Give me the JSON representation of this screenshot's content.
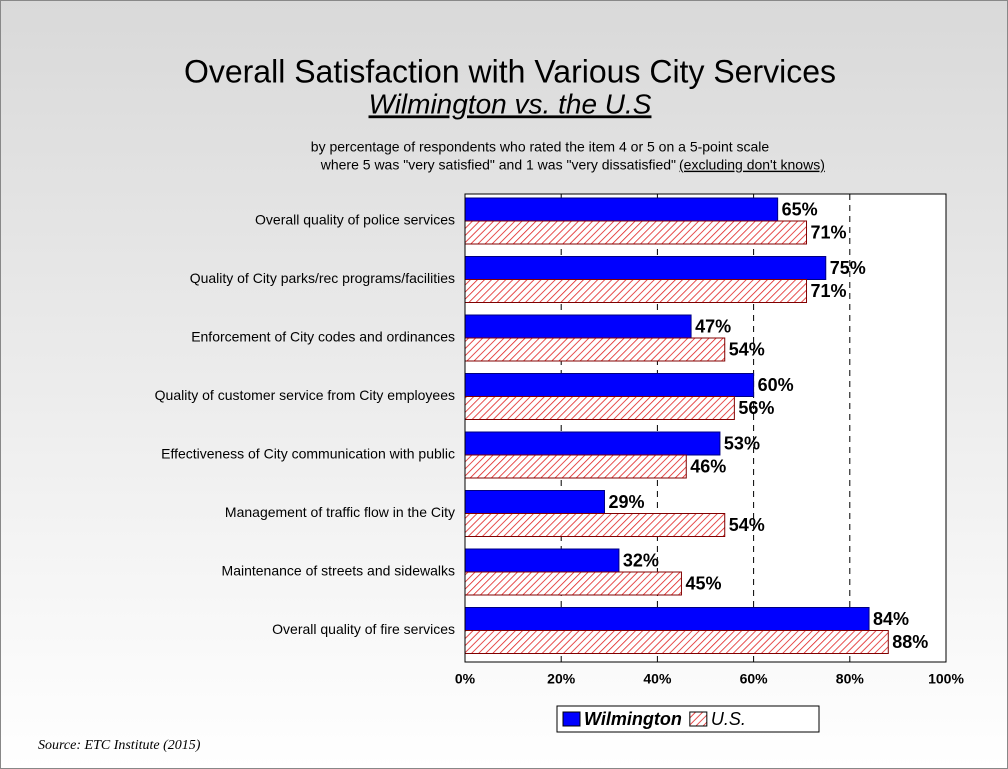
{
  "chart_data": {
    "type": "hbar",
    "title": "Overall Satisfaction with Various City Services",
    "subtitle": "Wilmington vs. the U.S",
    "note_line1": "by percentage of respondents who rated the item 4 or 5 on a 5-point scale",
    "note_line2": "where 5 was \"very satisfied\" and 1 was \"very dissatisfied\"",
    "note_line2_underlined": "(excluding don't knows)",
    "source": "Source:  ETC Institute (2015)",
    "categories": [
      "Overall quality of police services",
      "Quality of City parks/rec programs/facilities",
      "Enforcement of City codes and ordinances",
      "Quality of customer service from City employees",
      "Effectiveness of City communication with public",
      "Management of traffic flow in the City",
      "Maintenance of streets and sidewalks",
      "Overall quality of fire services"
    ],
    "series": [
      {
        "name": "Wilmington",
        "color": "#0000ff",
        "hatch": false,
        "values": [
          65,
          75,
          47,
          60,
          53,
          29,
          32,
          84
        ],
        "value_labels": [
          "65%",
          "75%",
          "47%",
          "60%",
          "53%",
          "29%",
          "32%",
          "84%"
        ]
      },
      {
        "name": "U.S.",
        "color": "#e02020",
        "hatch": true,
        "values": [
          71,
          71,
          54,
          56,
          46,
          54,
          45,
          88
        ],
        "value_labels": [
          "71%",
          "71%",
          "54%",
          "56%",
          "46%",
          "54%",
          "45%",
          "88%"
        ]
      }
    ],
    "xlim": [
      0,
      100
    ],
    "xticks": [
      {
        "value": 0,
        "label": "0%"
      },
      {
        "value": 20,
        "label": "20%"
      },
      {
        "value": 40,
        "label": "40%"
      },
      {
        "value": 60,
        "label": "60%"
      },
      {
        "value": 80,
        "label": "80%"
      },
      {
        "value": 100,
        "label": "100%"
      }
    ],
    "grid": true,
    "legend": "bottom"
  }
}
